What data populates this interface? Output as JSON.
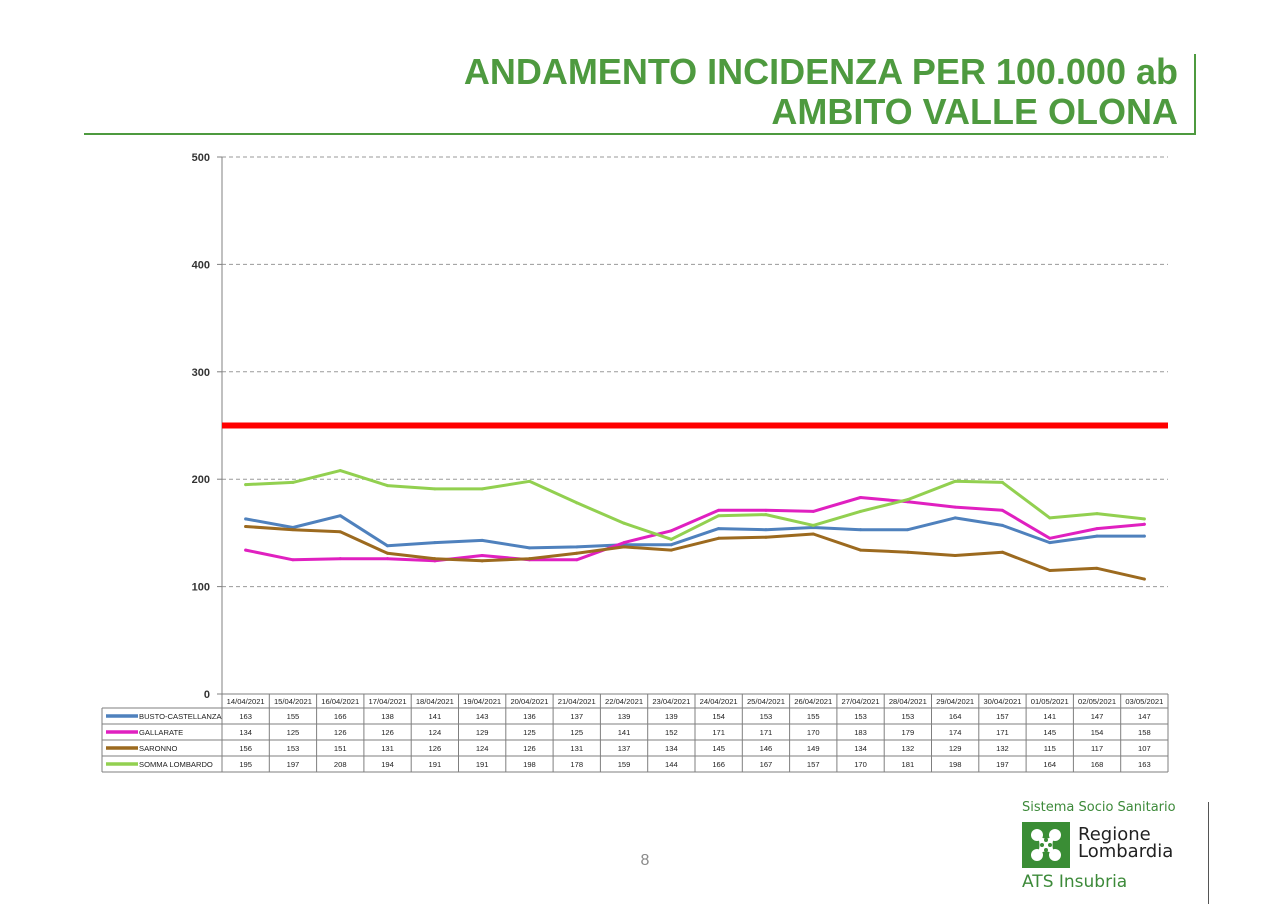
{
  "title": {
    "line1": "ANDAMENTO INCIDENZA PER 100.000 ab",
    "line2": "AMBITO VALLE OLONA"
  },
  "page_number": "8",
  "branding": {
    "system": "Sistema Socio Sanitario",
    "region_line1": "Regione",
    "region_line2": "Lombardia",
    "agency": "ATS Insubria",
    "logo_icon": "regione-lombardia-rosa-camuna-icon",
    "color": "#3d8a3a"
  },
  "chart_data": {
    "type": "line",
    "title": "",
    "xlabel": "",
    "ylabel": "",
    "ylim": [
      0,
      500
    ],
    "yticks": [
      0,
      100,
      200,
      300,
      400,
      500
    ],
    "grid": true,
    "threshold": {
      "value": 250,
      "color": "#ff0000"
    },
    "x": [
      "14/04/2021",
      "15/04/2021",
      "16/04/2021",
      "17/04/2021",
      "18/04/2021",
      "19/04/2021",
      "20/04/2021",
      "21/04/2021",
      "22/04/2021",
      "23/04/2021",
      "24/04/2021",
      "25/04/2021",
      "26/04/2021",
      "27/04/2021",
      "28/04/2021",
      "29/04/2021",
      "30/04/2021",
      "01/05/2021",
      "02/05/2021",
      "03/05/2021"
    ],
    "series": [
      {
        "name": "BUSTO-CASTELLANZA",
        "color": "#4f81bd",
        "values": [
          163,
          155,
          166,
          138,
          141,
          143,
          136,
          137,
          139,
          139,
          154,
          153,
          155,
          153,
          153,
          164,
          157,
          141,
          147,
          147
        ]
      },
      {
        "name": "GALLARATE",
        "color": "#e020c0",
        "values": [
          134,
          125,
          126,
          126,
          124,
          129,
          125,
          125,
          141,
          152,
          171,
          171,
          170,
          183,
          179,
          174,
          171,
          145,
          154,
          158
        ]
      },
      {
        "name": "SARONNO",
        "color": "#9c6a1f",
        "values": [
          156,
          153,
          151,
          131,
          126,
          124,
          126,
          131,
          137,
          134,
          145,
          146,
          149,
          134,
          132,
          129,
          132,
          115,
          117,
          107
        ]
      },
      {
        "name": "SOMMA LOMBARDO",
        "color": "#92d050",
        "values": [
          195,
          197,
          208,
          194,
          191,
          191,
          198,
          178,
          159,
          144,
          166,
          167,
          157,
          170,
          181,
          198,
          197,
          164,
          168,
          163
        ]
      }
    ]
  }
}
